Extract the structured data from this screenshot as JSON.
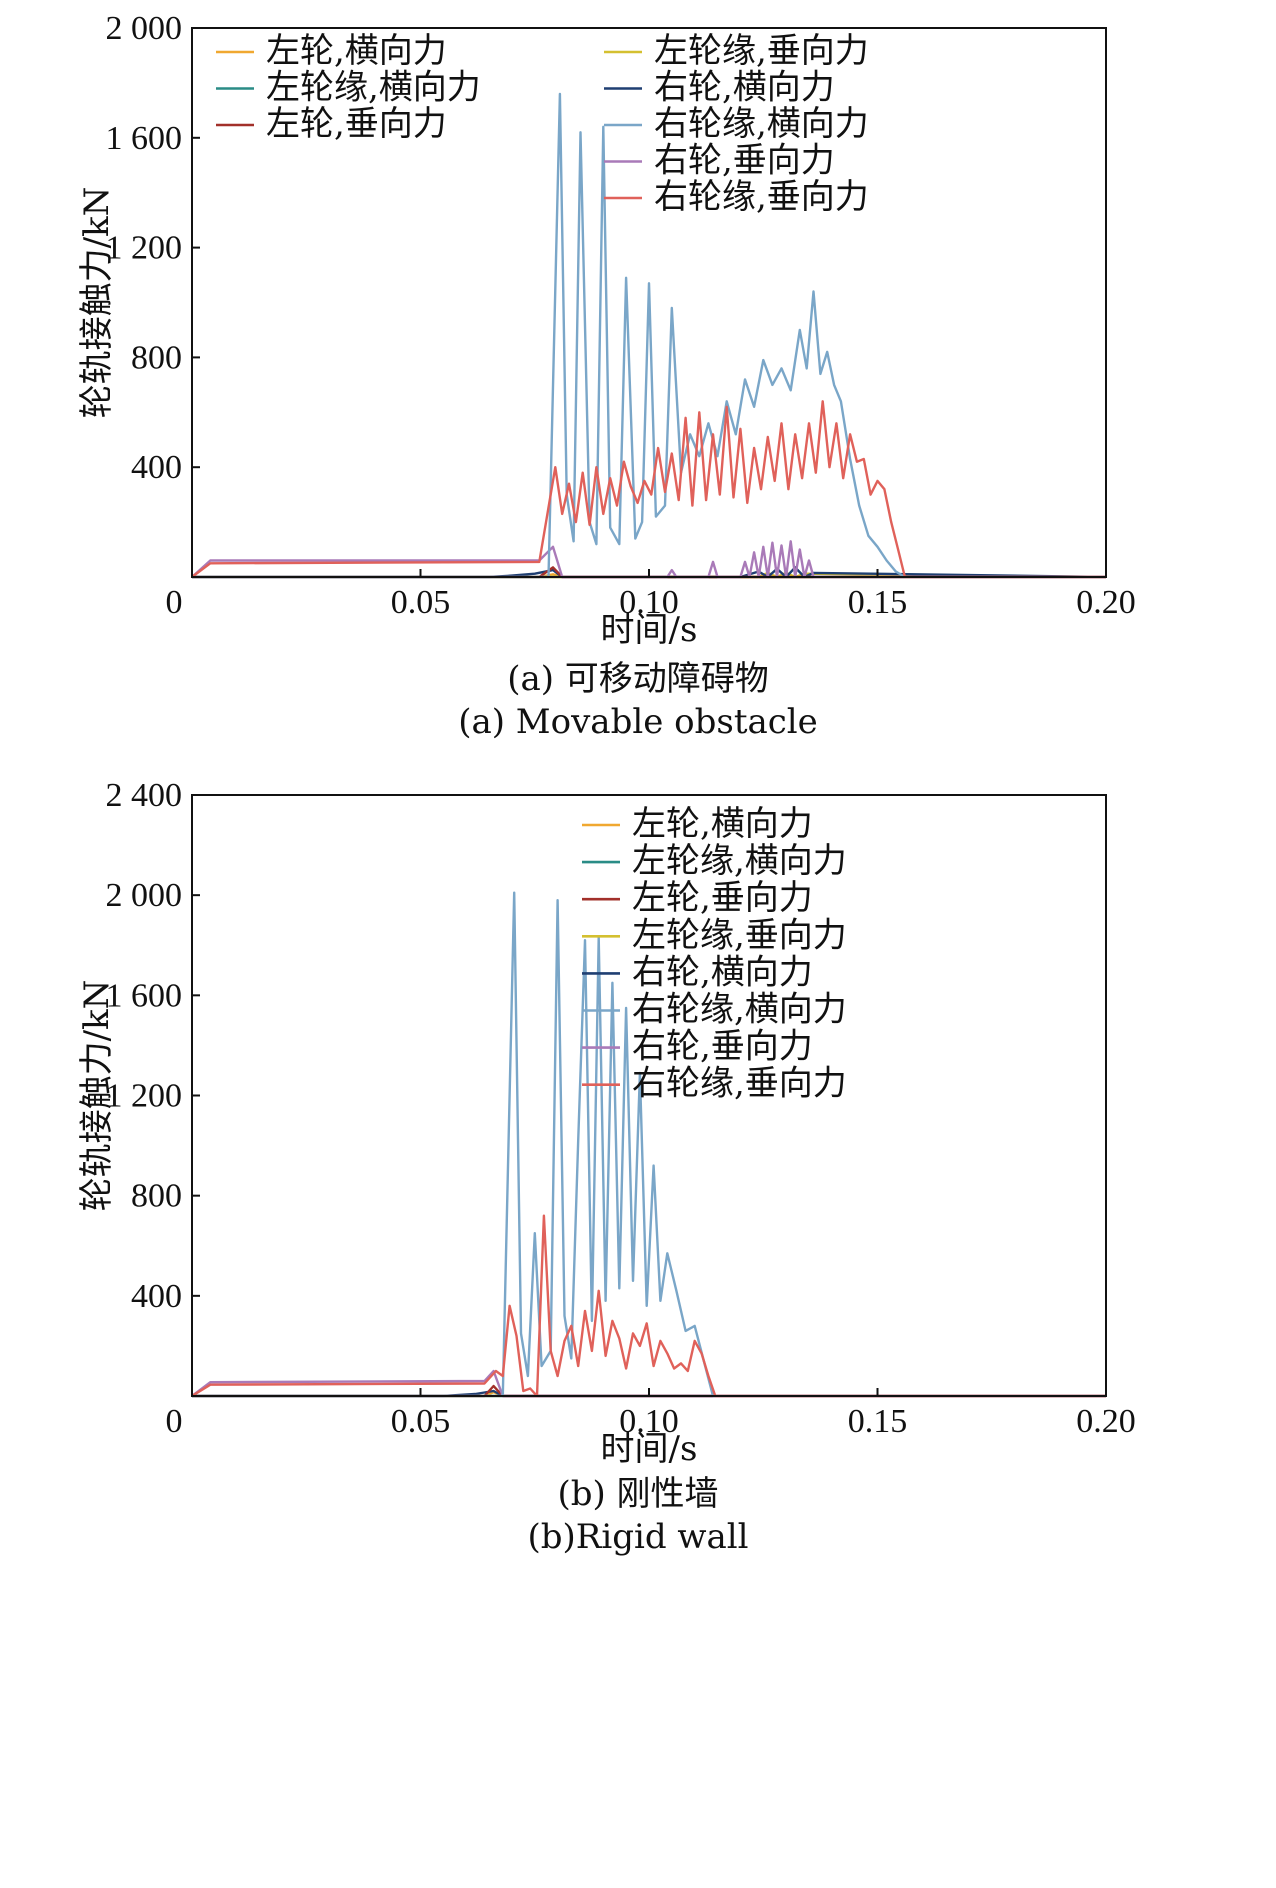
{
  "colors": {
    "left_wheel_lateral": "#f0a830",
    "left_flange_lateral": "#2a8c86",
    "left_wheel_vertical": "#a2302a",
    "left_flange_vertical": "#d4c030",
    "right_wheel_lateral": "#1f3f72",
    "right_flange_lateral": "#7aa6c8",
    "right_wheel_vertical": "#a97ab8",
    "right_flange_vertical": "#e0615a"
  },
  "chart_data": [
    {
      "id": "a",
      "type": "line",
      "caption_cn": "(a) 可移动障碍物",
      "caption_en": "(a) Movable obstacle",
      "xlabel": "时间/s",
      "ylabel": "轮轨接触力/kN",
      "xlim": [
        0,
        0.2
      ],
      "ylim": [
        0,
        2000
      ],
      "xticks": [
        0,
        0.05,
        0.1,
        0.15,
        0.2
      ],
      "xtick_labels": [
        "0",
        "0.05",
        "0.10",
        "0.15",
        "0.20"
      ],
      "yticks": [
        400,
        800,
        1200,
        1600,
        2000
      ],
      "ytick_labels": [
        "400",
        "800",
        "1 200",
        "1 600",
        "2 000"
      ],
      "legend_layout": "two-column, top",
      "legend": [
        "左轮,横向力",
        "左轮缘,横向力",
        "左轮,垂向力",
        "左轮缘,垂向力",
        "右轮,横向力",
        "右轮缘,横向力",
        "右轮,垂向力",
        "右轮缘,垂向力"
      ],
      "series": [
        {
          "name": "左轮,横向力",
          "color_key": "left_wheel_lateral",
          "x": [
            0,
            0.076,
            0.079,
            0.081,
            0.2
          ],
          "y": [
            0,
            0,
            10,
            0,
            0
          ]
        },
        {
          "name": "左轮缘,横向力",
          "color_key": "left_flange_lateral",
          "x": [
            0,
            0.2
          ],
          "y": [
            0,
            0
          ]
        },
        {
          "name": "左轮,垂向力",
          "color_key": "left_wheel_vertical",
          "x": [
            0,
            0.076,
            0.079,
            0.081,
            0.2
          ],
          "y": [
            0,
            0,
            35,
            0,
            0
          ]
        },
        {
          "name": "左轮缘,垂向力",
          "color_key": "left_flange_vertical",
          "x": [
            0,
            0.124,
            0.126,
            0.128,
            0.13,
            0.132,
            0.134,
            0.2
          ],
          "y": [
            0,
            0,
            15,
            0,
            15,
            0,
            12,
            0
          ]
        },
        {
          "name": "右轮,横向力",
          "color_key": "right_wheel_lateral",
          "x": [
            0,
            0.065,
            0.07,
            0.075,
            0.079,
            0.081,
            0.12,
            0.124,
            0.126,
            0.128,
            0.13,
            0.132,
            0.134,
            0.136,
            0.2
          ],
          "y": [
            0,
            0,
            5,
            12,
            25,
            0,
            0,
            20,
            0,
            30,
            0,
            35,
            0,
            15,
            0
          ]
        },
        {
          "name": "右轮缘,横向力",
          "color_key": "right_flange_lateral",
          "x": [
            0,
            0.078,
            0.0805,
            0.082,
            0.0835,
            0.085,
            0.087,
            0.0885,
            0.09,
            0.0915,
            0.0935,
            0.095,
            0.097,
            0.0985,
            0.1,
            0.1015,
            0.1035,
            0.105,
            0.107,
            0.109,
            0.111,
            0.113,
            0.115,
            0.117,
            0.119,
            0.121,
            0.123,
            0.125,
            0.127,
            0.129,
            0.131,
            0.133,
            0.1345,
            0.136,
            0.1375,
            0.139,
            0.1405,
            0.142,
            0.144,
            0.146,
            0.148,
            0.15,
            0.152,
            0.154,
            0.156,
            0.2
          ],
          "y": [
            0,
            0,
            1760,
            300,
            130,
            1620,
            200,
            120,
            1640,
            180,
            120,
            1090,
            140,
            200,
            1070,
            220,
            260,
            980,
            380,
            520,
            440,
            560,
            440,
            640,
            520,
            720,
            620,
            790,
            700,
            760,
            680,
            900,
            760,
            1040,
            740,
            820,
            700,
            640,
            430,
            260,
            150,
            110,
            60,
            20,
            0,
            0
          ]
        },
        {
          "name": "右轮,垂向力",
          "color_key": "right_wheel_vertical",
          "x": [
            0,
            0.004,
            0.076,
            0.079,
            0.081,
            0.104,
            0.105,
            0.106,
            0.113,
            0.114,
            0.115,
            0.12,
            0.121,
            0.122,
            0.123,
            0.124,
            0.125,
            0.126,
            0.127,
            0.128,
            0.129,
            0.13,
            0.131,
            0.132,
            0.133,
            0.134,
            0.135,
            0.136,
            0.2
          ],
          "y": [
            0,
            60,
            60,
            110,
            0,
            0,
            25,
            0,
            0,
            55,
            0,
            0,
            55,
            0,
            90,
            0,
            110,
            0,
            125,
            0,
            115,
            0,
            130,
            0,
            100,
            0,
            60,
            0,
            0
          ]
        },
        {
          "name": "右轮缘,垂向力",
          "color_key": "right_flange_vertical",
          "x": [
            0,
            0.004,
            0.076,
            0.0795,
            0.081,
            0.0825,
            0.084,
            0.0855,
            0.087,
            0.0885,
            0.09,
            0.0915,
            0.093,
            0.0945,
            0.096,
            0.0975,
            0.099,
            0.1005,
            0.102,
            0.1035,
            0.105,
            0.1065,
            0.108,
            0.1095,
            0.111,
            0.1125,
            0.114,
            0.1155,
            0.117,
            0.1185,
            0.12,
            0.1215,
            0.123,
            0.1245,
            0.126,
            0.1275,
            0.129,
            0.1305,
            0.132,
            0.1335,
            0.135,
            0.1365,
            0.138,
            0.1395,
            0.141,
            0.1425,
            0.144,
            0.1455,
            0.147,
            0.1485,
            0.15,
            0.1515,
            0.153,
            0.1545,
            0.156,
            0.2
          ],
          "y": [
            0,
            50,
            55,
            400,
            230,
            340,
            200,
            380,
            190,
            400,
            230,
            360,
            260,
            420,
            330,
            270,
            350,
            300,
            470,
            310,
            450,
            280,
            580,
            260,
            600,
            280,
            520,
            300,
            620,
            290,
            540,
            270,
            470,
            320,
            510,
            350,
            560,
            320,
            520,
            360,
            560,
            380,
            640,
            400,
            560,
            360,
            520,
            420,
            430,
            300,
            350,
            320,
            200,
            100,
            0,
            0
          ]
        }
      ]
    },
    {
      "id": "b",
      "type": "line",
      "caption_cn": "(b) 刚性墙",
      "caption_en": "(b)Rigid wall",
      "xlabel": "时间/s",
      "ylabel": "轮轨接触力/kN",
      "xlim": [
        0,
        0.2
      ],
      "ylim": [
        0,
        2400
      ],
      "xticks": [
        0,
        0.05,
        0.1,
        0.15,
        0.2
      ],
      "xtick_labels": [
        "0",
        "0.05",
        "0.10",
        "0.15",
        "0.20"
      ],
      "yticks": [
        400,
        800,
        1200,
        1600,
        2000,
        2400
      ],
      "ytick_labels": [
        "400",
        "800",
        "1 200",
        "1 600",
        "2 000",
        "2 400"
      ],
      "legend_layout": "one-column, top-right",
      "legend": [
        "左轮,横向力",
        "左轮缘,横向力",
        "左轮,垂向力",
        "左轮缘,垂向力",
        "右轮,横向力",
        "右轮缘,横向力",
        "右轮,垂向力",
        "右轮缘,垂向力"
      ],
      "series": [
        {
          "name": "左轮,横向力",
          "color_key": "left_wheel_lateral",
          "x": [
            0,
            0.064,
            0.066,
            0.068,
            0.2
          ],
          "y": [
            0,
            0,
            15,
            0,
            0
          ]
        },
        {
          "name": "左轮缘,横向力",
          "color_key": "left_flange_lateral",
          "x": [
            0,
            0.2
          ],
          "y": [
            0,
            0
          ]
        },
        {
          "name": "左轮,垂向力",
          "color_key": "left_wheel_vertical",
          "x": [
            0,
            0.064,
            0.066,
            0.068,
            0.2
          ],
          "y": [
            0,
            0,
            40,
            0,
            0
          ]
        },
        {
          "name": "左轮缘,垂向力",
          "color_key": "left_flange_vertical",
          "x": [
            0,
            0.2
          ],
          "y": [
            0,
            0
          ]
        },
        {
          "name": "右轮,横向力",
          "color_key": "right_wheel_lateral",
          "x": [
            0,
            0.055,
            0.062,
            0.066,
            0.068,
            0.2
          ],
          "y": [
            0,
            0,
            8,
            20,
            0,
            0
          ]
        },
        {
          "name": "右轮缘,横向力",
          "color_key": "right_flange_lateral",
          "x": [
            0,
            0.068,
            0.0705,
            0.072,
            0.0735,
            0.075,
            0.0765,
            0.0785,
            0.08,
            0.0815,
            0.083,
            0.0845,
            0.086,
            0.0875,
            0.089,
            0.0905,
            0.092,
            0.0935,
            0.095,
            0.0965,
            0.098,
            0.0995,
            0.101,
            0.1025,
            0.104,
            0.106,
            0.108,
            0.11,
            0.112,
            0.114,
            0.2
          ],
          "y": [
            0,
            0,
            2010,
            250,
            80,
            650,
            120,
            180,
            1980,
            320,
            150,
            1020,
            1820,
            300,
            1830,
            380,
            1650,
            430,
            1550,
            460,
            1290,
            360,
            920,
            380,
            570,
            420,
            260,
            280,
            140,
            0,
            0
          ]
        },
        {
          "name": "右轮,垂向力",
          "color_key": "right_wheel_vertical",
          "x": [
            0,
            0.004,
            0.064,
            0.066,
            0.068,
            0.2
          ],
          "y": [
            0,
            55,
            60,
            100,
            0,
            0
          ]
        },
        {
          "name": "右轮缘,垂向力",
          "color_key": "right_flange_vertical",
          "x": [
            0,
            0.004,
            0.064,
            0.0665,
            0.068,
            0.0695,
            0.071,
            0.0725,
            0.074,
            0.0755,
            0.077,
            0.0785,
            0.08,
            0.0815,
            0.083,
            0.0845,
            0.086,
            0.0875,
            0.089,
            0.0905,
            0.092,
            0.0935,
            0.095,
            0.0965,
            0.098,
            0.0995,
            0.101,
            0.1025,
            0.104,
            0.1055,
            0.107,
            0.1085,
            0.11,
            0.1115,
            0.113,
            0.1145,
            0.2
          ],
          "y": [
            0,
            45,
            50,
            100,
            80,
            360,
            240,
            20,
            30,
            0,
            720,
            180,
            80,
            220,
            280,
            120,
            340,
            180,
            420,
            160,
            300,
            230,
            110,
            250,
            200,
            290,
            120,
            220,
            170,
            110,
            130,
            100,
            220,
            170,
            80,
            0,
            0
          ]
        }
      ]
    }
  ]
}
